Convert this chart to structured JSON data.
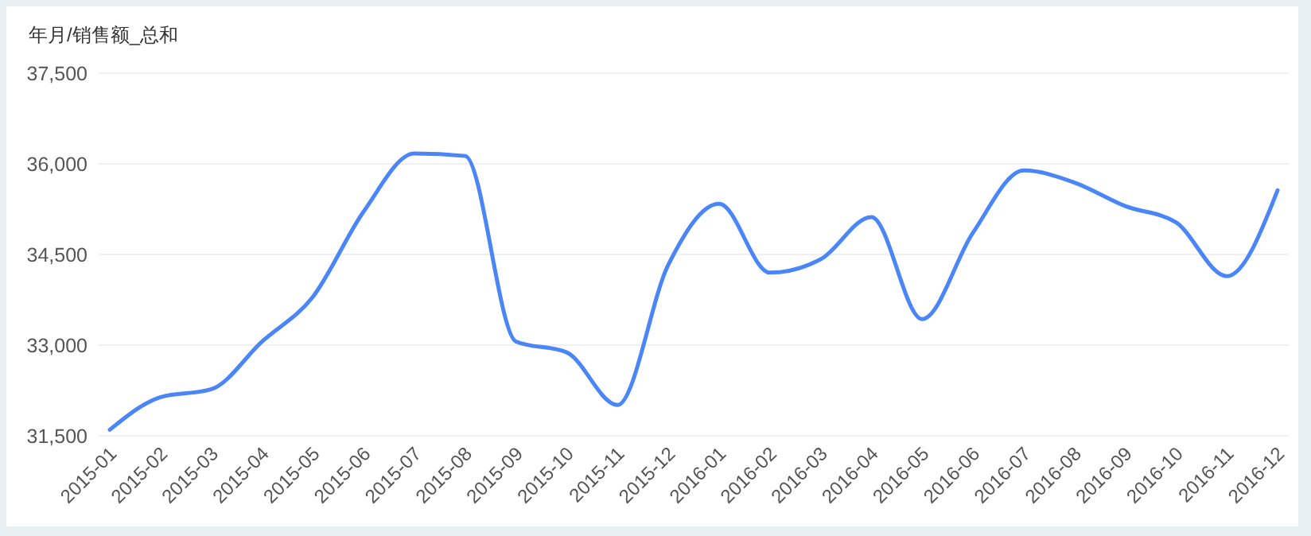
{
  "chart_data": {
    "type": "line",
    "title": "年月/销售额_总和",
    "categories": [
      "2015-01",
      "2015-02",
      "2015-03",
      "2015-04",
      "2015-05",
      "2015-06",
      "2015-07",
      "2015-08",
      "2015-09",
      "2015-10",
      "2015-11",
      "2015-12",
      "2016-01",
      "2016-02",
      "2016-03",
      "2016-04",
      "2016-05",
      "2016-06",
      "2016-07",
      "2016-08",
      "2016-09",
      "2016-10",
      "2016-11",
      "2016-12"
    ],
    "series": [
      {
        "color": "#4a86f7",
        "values": [
          31600,
          32140,
          32270,
          33060,
          33800,
          35210,
          36170,
          36130,
          33060,
          32880,
          32010,
          34330,
          35340,
          34200,
          34420,
          35120,
          33430,
          34860,
          35890,
          35690,
          35300,
          35030,
          34140,
          35560
        ]
      }
    ],
    "ylim": [
      31500,
      37500
    ],
    "yticks": [
      {
        "value": 31500,
        "label": "31,500"
      },
      {
        "value": 33000,
        "label": "33,000"
      },
      {
        "value": 34500,
        "label": "34,500"
      },
      {
        "value": 36000,
        "label": "36,000"
      },
      {
        "value": 37500,
        "label": "37,500"
      }
    ],
    "grid": "y",
    "marker": "none",
    "line_style": "solid"
  }
}
